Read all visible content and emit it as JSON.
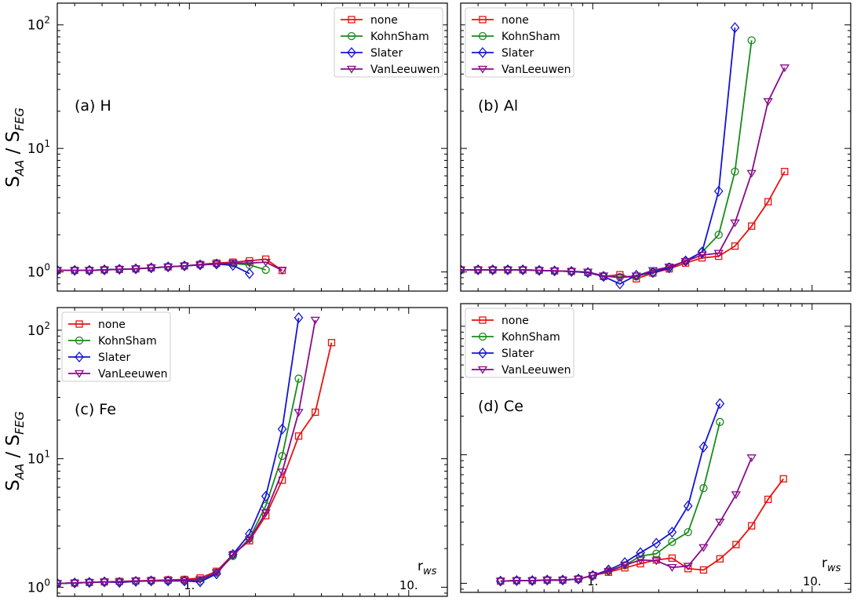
{
  "figure": {
    "ylabel": "S",
    "ylabel_sub": "AA",
    "ylabel_sep": " / S",
    "ylabel_sub2": "FEG",
    "xlabel": "r",
    "xlabel_sub": "ws",
    "x_tick_labels": [
      "1.",
      "10."
    ],
    "y_tick_labels": [
      "10",
      "10",
      "10"
    ],
    "y_tick_exponents": [
      "0",
      "1",
      "2"
    ]
  },
  "colors": {
    "none": "#e8120f",
    "KohnSham": "#1a8a1a",
    "Slater": "#1414d4",
    "VanLeeuwen": "#8a0a8a"
  },
  "chart_data": [
    {
      "type": "line",
      "title": "(a) H",
      "xscale": "log",
      "yscale": "log",
      "xlim": [
        0.25,
        15
      ],
      "ylim": [
        0.7,
        150
      ],
      "legend": "top-right",
      "x": [
        0.25,
        0.3,
        0.35,
        0.41,
        0.48,
        0.57,
        0.67,
        0.8,
        0.95,
        1.12,
        1.33,
        1.58,
        1.88,
        2.23,
        2.65
      ],
      "series": [
        {
          "name": "none",
          "marker": "square",
          "values": [
            1.03,
            1.03,
            1.03,
            1.04,
            1.05,
            1.06,
            1.08,
            1.1,
            1.12,
            1.15,
            1.18,
            1.2,
            1.23,
            1.27,
            1.03
          ]
        },
        {
          "name": "KohnSham",
          "marker": "circle",
          "values": [
            1.03,
            1.03,
            1.03,
            1.04,
            1.05,
            1.06,
            1.08,
            1.1,
            1.12,
            1.14,
            1.16,
            1.17,
            1.14,
            1.04,
            null
          ]
        },
        {
          "name": "Slater",
          "marker": "diamond",
          "values": [
            1.03,
            1.03,
            1.03,
            1.04,
            1.05,
            1.06,
            1.08,
            1.1,
            1.12,
            1.14,
            1.16,
            1.13,
            0.97,
            null,
            null
          ]
        },
        {
          "name": "VanLeeuwen",
          "marker": "triangle-down",
          "values": [
            1.03,
            1.03,
            1.03,
            1.04,
            1.05,
            1.06,
            1.08,
            1.1,
            1.12,
            1.14,
            1.16,
            1.18,
            1.18,
            1.2,
            1.03
          ]
        }
      ]
    },
    {
      "type": "line",
      "title": "(b) Al",
      "xscale": "log",
      "yscale": "log",
      "xlim": [
        0.25,
        15
      ],
      "ylim": [
        0.7,
        150
      ],
      "legend": "top-left",
      "x": [
        0.25,
        0.3,
        0.35,
        0.41,
        0.48,
        0.57,
        0.67,
        0.8,
        0.95,
        1.12,
        1.33,
        1.58,
        1.88,
        2.23,
        2.65,
        3.15,
        3.75,
        4.45,
        5.3,
        6.3,
        7.5,
        8.9
      ],
      "series": [
        {
          "name": "none",
          "marker": "square",
          "values": [
            1.04,
            1.04,
            1.04,
            1.04,
            1.04,
            1.03,
            1.02,
            1.01,
            0.99,
            0.92,
            0.95,
            0.88,
            0.98,
            1.06,
            1.18,
            1.3,
            1.34,
            1.62,
            2.35,
            3.7,
            6.5,
            null
          ]
        },
        {
          "name": "KohnSham",
          "marker": "circle",
          "values": [
            1.04,
            1.04,
            1.04,
            1.04,
            1.04,
            1.03,
            1.02,
            1.01,
            0.99,
            0.93,
            0.91,
            0.92,
            1.0,
            1.1,
            1.22,
            1.45,
            2.0,
            6.5,
            75,
            null,
            null,
            null
          ]
        },
        {
          "name": "Slater",
          "marker": "diamond",
          "values": [
            1.04,
            1.04,
            1.04,
            1.04,
            1.04,
            1.03,
            1.02,
            1.01,
            0.99,
            0.92,
            0.8,
            0.94,
            0.99,
            1.08,
            1.23,
            1.45,
            4.5,
            95,
            null,
            null,
            null,
            null
          ]
        },
        {
          "name": "VanLeeuwen",
          "marker": "triangle-down",
          "values": [
            1.04,
            1.04,
            1.04,
            1.04,
            1.04,
            1.03,
            1.02,
            1.01,
            1.0,
            0.93,
            0.9,
            0.93,
            1.03,
            1.1,
            1.22,
            1.37,
            1.42,
            2.5,
            6.3,
            24,
            45,
            null
          ]
        }
      ]
    },
    {
      "type": "line",
      "title": "(c) Fe",
      "xscale": "log",
      "yscale": "log",
      "xlim": [
        0.25,
        15
      ],
      "ylim": [
        0.85,
        150
      ],
      "legend": "top-left",
      "x": [
        0.25,
        0.3,
        0.35,
        0.41,
        0.48,
        0.57,
        0.67,
        0.8,
        0.95,
        1.12,
        1.33,
        1.58,
        1.88,
        2.23,
        2.65,
        3.15,
        3.75,
        4.45
      ],
      "series": [
        {
          "name": "none",
          "marker": "square",
          "values": [
            1.07,
            1.08,
            1.09,
            1.1,
            1.11,
            1.12,
            1.13,
            1.14,
            1.15,
            1.18,
            1.33,
            1.8,
            2.3,
            3.6,
            6.8,
            15.0,
            23.0,
            80
          ]
        },
        {
          "name": "KohnSham",
          "marker": "circle",
          "values": [
            1.07,
            1.08,
            1.09,
            1.1,
            1.1,
            1.12,
            1.12,
            1.12,
            1.12,
            1.12,
            1.3,
            1.75,
            2.4,
            4.3,
            10.5,
            42,
            null,
            null
          ]
        },
        {
          "name": "Slater",
          "marker": "diamond",
          "values": [
            1.07,
            1.08,
            1.09,
            1.1,
            1.09,
            1.11,
            1.12,
            1.12,
            1.12,
            1.1,
            1.27,
            1.8,
            2.6,
            5.1,
            17.0,
            125,
            null,
            null
          ]
        },
        {
          "name": "VanLeeuwen",
          "marker": "triangle-down",
          "values": [
            1.07,
            1.08,
            1.09,
            1.1,
            1.1,
            1.12,
            1.12,
            1.13,
            1.13,
            1.15,
            1.3,
            1.78,
            2.35,
            3.8,
            7.9,
            23.0,
            120,
            null
          ]
        }
      ]
    },
    {
      "type": "line",
      "title": "(d) Ce",
      "xscale": "log",
      "yscale": "log",
      "xlim": [
        0.25,
        15
      ],
      "ylim": [
        0.85,
        150
      ],
      "legend": "top-left",
      "x": [
        0.38,
        0.45,
        0.53,
        0.62,
        0.73,
        0.86,
        1.0,
        1.18,
        1.4,
        1.65,
        1.95,
        2.3,
        2.72,
        3.2,
        3.8,
        4.5,
        5.3,
        6.3,
        7.4,
        8.8
      ],
      "series": [
        {
          "name": "none",
          "marker": "square",
          "values": [
            1.04,
            1.05,
            1.05,
            1.06,
            1.06,
            1.08,
            1.15,
            1.22,
            1.32,
            1.42,
            1.52,
            1.57,
            1.3,
            1.27,
            1.55,
            2.0,
            2.8,
            4.5,
            6.5,
            null
          ]
        },
        {
          "name": "KohnSham",
          "marker": "circle",
          "values": [
            1.04,
            1.05,
            1.05,
            1.06,
            1.06,
            1.08,
            1.15,
            1.25,
            1.38,
            1.63,
            1.7,
            2.1,
            2.5,
            5.5,
            18.0,
            null,
            null,
            null,
            null,
            null
          ]
        },
        {
          "name": "Slater",
          "marker": "diamond",
          "values": [
            1.04,
            1.05,
            1.05,
            1.06,
            1.06,
            1.08,
            1.15,
            1.27,
            1.45,
            1.73,
            2.05,
            2.5,
            4.0,
            11.5,
            25.0,
            null,
            null,
            null,
            null,
            null
          ]
        },
        {
          "name": "VanLeeuwen",
          "marker": "triangle-down",
          "values": [
            1.04,
            1.05,
            1.05,
            1.06,
            1.06,
            1.08,
            1.15,
            1.24,
            1.38,
            1.52,
            1.5,
            1.33,
            1.36,
            1.9,
            3.0,
            4.9,
            9.5,
            null,
            null,
            null
          ]
        }
      ]
    }
  ]
}
